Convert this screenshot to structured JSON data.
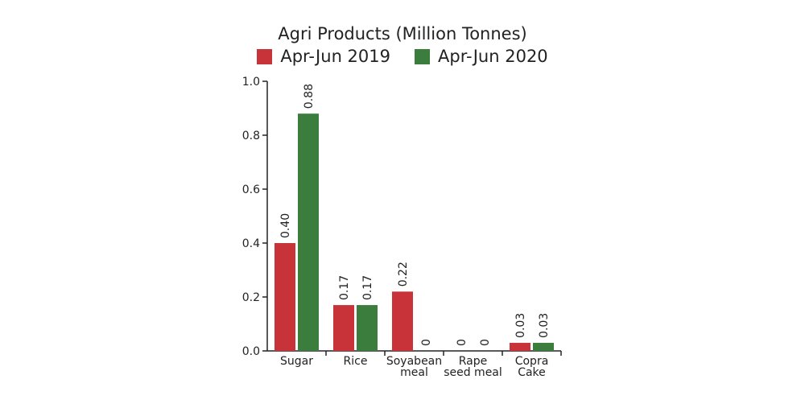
{
  "chart_data": {
    "type": "bar",
    "title": "Agri Products (Million Tonnes)",
    "categories": [
      [
        "Sugar"
      ],
      [
        "Rice"
      ],
      [
        "Soyabean",
        "meal"
      ],
      [
        "Rape",
        "seed meal"
      ],
      [
        "Copra",
        "Cake"
      ]
    ],
    "series": [
      {
        "name": "Apr-Jun 2019",
        "color": "#c8333a",
        "values": [
          0.4,
          0.17,
          0.22,
          0,
          0.03
        ],
        "labels": [
          "0.40",
          "0.17",
          "0.22",
          "0",
          "0.03"
        ]
      },
      {
        "name": "Apr-Jun 2020",
        "color": "#3a7d3c",
        "values": [
          0.88,
          0.17,
          0,
          0,
          0.03
        ],
        "labels": [
          "0.88",
          "0.17",
          "0",
          "0",
          "0.03"
        ]
      }
    ],
    "yticks": [
      "0.0",
      "0.2",
      "0.4",
      "0.6",
      "0.8",
      "1.0"
    ],
    "ylim": [
      0,
      1.0
    ],
    "xlabel": "",
    "ylabel": "",
    "grid": false,
    "legend": "top"
  }
}
